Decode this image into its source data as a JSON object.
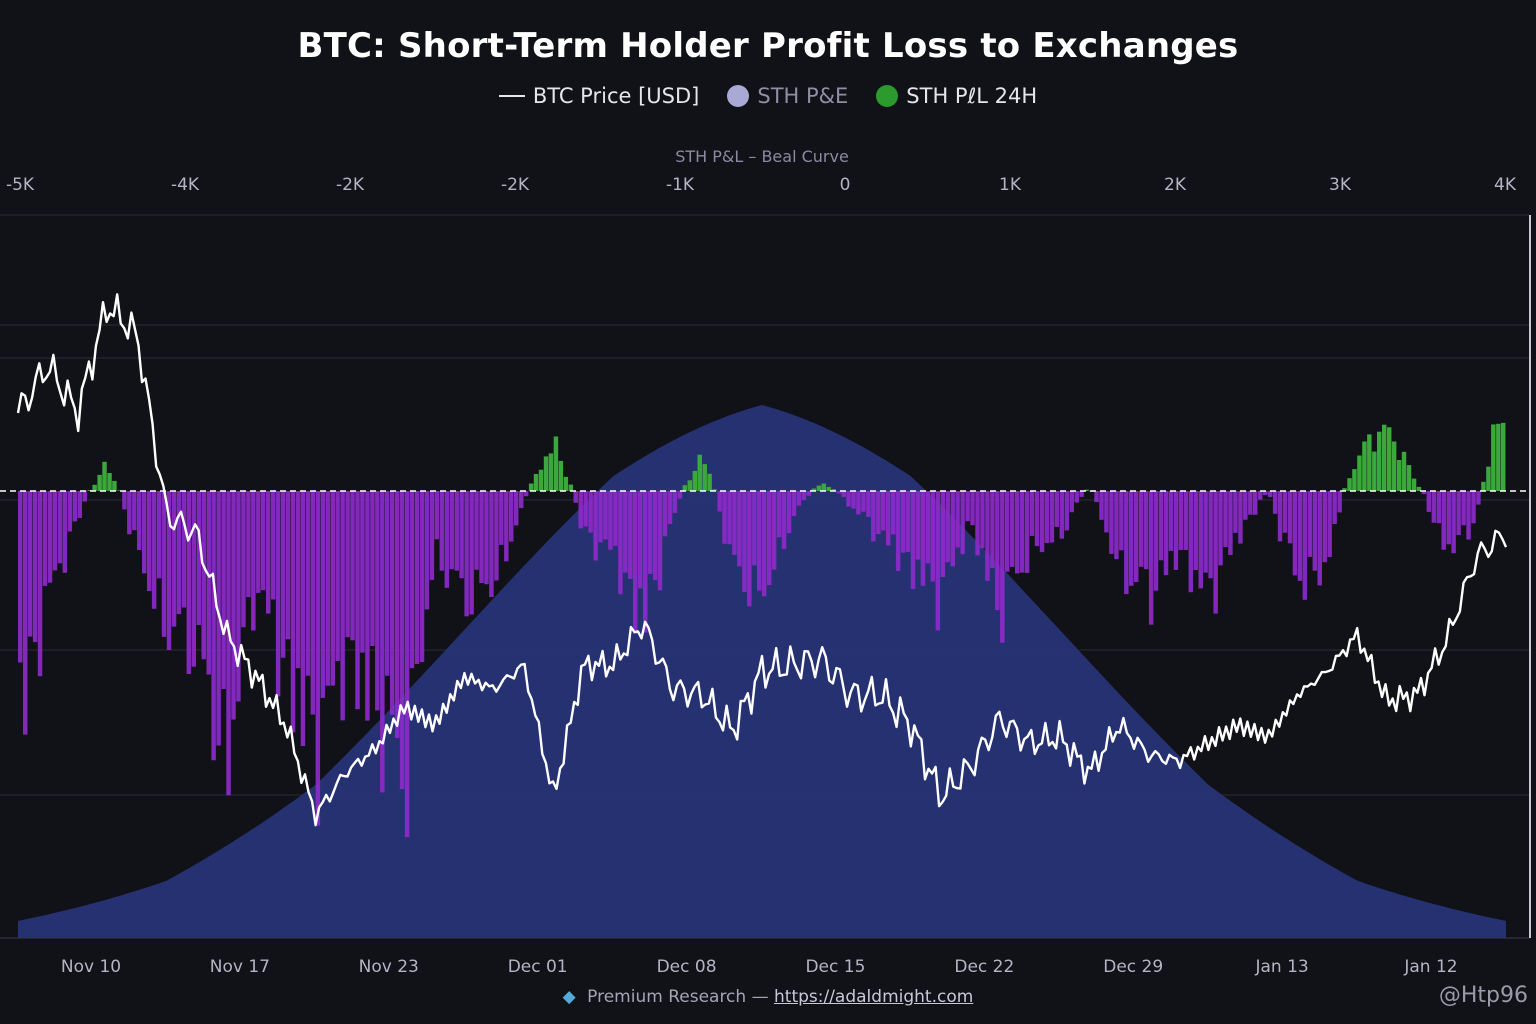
{
  "title": "BTC: Short-Term Holder Profit Loss to Exchanges",
  "legend": [
    {
      "label": "BTC Price [USD]",
      "marker": "line",
      "color": "#e6e6ea"
    },
    {
      "label": "STH P&E",
      "marker": "dot",
      "color": "#a9a9d6"
    },
    {
      "label": "STH PℓL 24H",
      "marker": "dot",
      "color": "#2c9a2c"
    }
  ],
  "footer": {
    "gem_icon": "gem-icon",
    "text": "Premium Research —",
    "link": "https://adaldmight.com"
  },
  "watermark": "@Htp96",
  "colors": {
    "background": "#111118",
    "price": "#ffffff",
    "profit": "#3aa83a",
    "loss": "#8a2ac6",
    "bell": "#28347a"
  },
  "chart_data": {
    "type": "area",
    "title": "BTC: Short-Term Holder Profit Loss to Exchanges",
    "top_axis": {
      "label": "STH P&L – Beal Curve",
      "ticks": [
        "-5K",
        "-4K",
        "-2K",
        "-2K",
        "-1K",
        "0",
        "1K",
        "2K",
        "3K",
        "4K"
      ]
    },
    "x_axis": {
      "ticks": [
        "Nov 10",
        "Nov 17",
        "Nov 23",
        "Dec 01",
        "Dec 08",
        "Dec 15",
        "Dec 22",
        "Dec 29",
        "Jan 13",
        "Jan 12"
      ]
    },
    "grid": true,
    "zero_line": "dashed",
    "series": [
      {
        "name": "BTC Price [USD]",
        "style": "line",
        "x": [
          0,
          0.02,
          0.04,
          0.06,
          0.08,
          0.1,
          0.12,
          0.14,
          0.16,
          0.18,
          0.2,
          0.22,
          0.24,
          0.26,
          0.28,
          0.3,
          0.32,
          0.34,
          0.36,
          0.38,
          0.4,
          0.42,
          0.44,
          0.46,
          0.48,
          0.5,
          0.52,
          0.54,
          0.56,
          0.58,
          0.6,
          0.62,
          0.64,
          0.66,
          0.68,
          0.7,
          0.72,
          0.74,
          0.76,
          0.78,
          0.8,
          0.82,
          0.84,
          0.86,
          0.88,
          0.9,
          0.92,
          0.94,
          0.96,
          0.98,
          1.0
        ],
        "values": [
          0.72,
          0.8,
          0.72,
          0.9,
          0.85,
          0.55,
          0.52,
          0.35,
          0.28,
          0.2,
          0.05,
          0.12,
          0.16,
          0.23,
          0.2,
          0.28,
          0.26,
          0.3,
          0.08,
          0.3,
          0.3,
          0.37,
          0.26,
          0.25,
          0.19,
          0.29,
          0.3,
          0.31,
          0.25,
          0.25,
          0.2,
          0.08,
          0.13,
          0.21,
          0.17,
          0.18,
          0.12,
          0.2,
          0.15,
          0.14,
          0.17,
          0.2,
          0.18,
          0.25,
          0.29,
          0.35,
          0.24,
          0.25,
          0.34,
          0.48,
          0.52
        ]
      },
      {
        "name": "STH PℓL 24H",
        "style": "bars",
        "x": [
          0,
          0.02,
          0.04,
          0.06,
          0.08,
          0.1,
          0.12,
          0.14,
          0.16,
          0.18,
          0.2,
          0.22,
          0.24,
          0.26,
          0.28,
          0.3,
          0.32,
          0.34,
          0.36,
          0.38,
          0.4,
          0.42,
          0.44,
          0.46,
          0.48,
          0.5,
          0.52,
          0.54,
          0.56,
          0.58,
          0.6,
          0.62,
          0.64,
          0.66,
          0.68,
          0.7,
          0.72,
          0.74,
          0.76,
          0.78,
          0.8,
          0.82,
          0.84,
          0.86,
          0.88,
          0.9,
          0.92,
          0.94,
          0.96,
          0.98,
          1.0
        ],
        "values": [
          -0.8,
          -0.35,
          -0.1,
          0.15,
          -0.2,
          -0.45,
          -0.5,
          -0.9,
          -0.3,
          -0.6,
          -0.85,
          -0.55,
          -0.7,
          -0.95,
          -0.2,
          -0.35,
          -0.3,
          -0.05,
          0.28,
          -0.15,
          -0.2,
          -0.45,
          -0.1,
          0.2,
          -0.25,
          -0.35,
          -0.1,
          0.05,
          -0.05,
          -0.15,
          -0.25,
          -0.35,
          -0.1,
          -0.4,
          -0.2,
          -0.15,
          0.02,
          -0.25,
          -0.35,
          -0.2,
          -0.35,
          -0.15,
          0.0,
          -0.3,
          -0.25,
          0.2,
          0.36,
          0.05,
          -0.2,
          -0.1,
          0.55
        ]
      },
      {
        "name": "STH P&E",
        "style": "area",
        "x": [
          0,
          0.1,
          0.2,
          0.3,
          0.4,
          0.5,
          0.6,
          0.7,
          0.8,
          0.9,
          1.0
        ],
        "values": [
          0.02,
          0.08,
          0.25,
          0.55,
          0.85,
          1.0,
          0.85,
          0.55,
          0.25,
          0.08,
          0.02
        ]
      }
    ]
  }
}
